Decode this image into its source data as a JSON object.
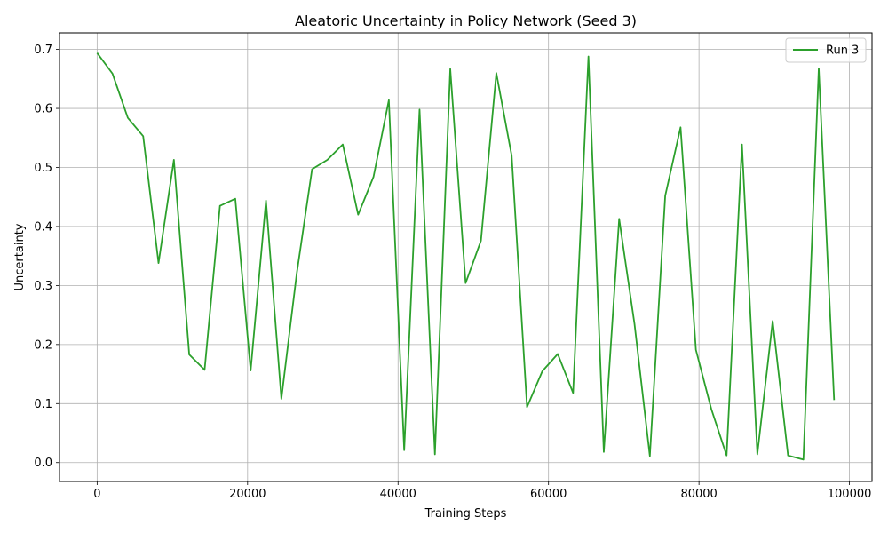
{
  "chart_data": {
    "type": "line",
    "title": "Aleatoric Uncertainty in Policy Network (Seed 3)",
    "xlabel": "Training Steps",
    "ylabel": "Uncertainty",
    "xlim": [
      -5000,
      103000
    ],
    "ylim": [
      -0.032,
      0.728
    ],
    "xticks": [
      0,
      20000,
      40000,
      60000,
      80000,
      100000
    ],
    "xtick_labels": [
      "0",
      "20000",
      "40000",
      "60000",
      "80000",
      "100000"
    ],
    "yticks": [
      0.0,
      0.1,
      0.2,
      0.3,
      0.4,
      0.5,
      0.6,
      0.7
    ],
    "ytick_labels": [
      "0.0",
      "0.1",
      "0.2",
      "0.3",
      "0.4",
      "0.5",
      "0.6",
      "0.7"
    ],
    "grid": true,
    "legend_position": "top-right",
    "series": [
      {
        "name": "Run 3",
        "color": "#2ca02c",
        "x": [
          0,
          2041,
          4082,
          6122,
          8163,
          10204,
          12245,
          14286,
          16327,
          18367,
          20408,
          22449,
          24490,
          26531,
          28571,
          30612,
          32653,
          34694,
          36735,
          38776,
          40816,
          42857,
          44898,
          46939,
          48980,
          51020,
          53061,
          55102,
          57143,
          59184,
          61224,
          63265,
          65306,
          67347,
          69388,
          71429,
          73469,
          75510,
          77551,
          79592,
          81633,
          83673,
          85714,
          87755,
          89796,
          91837,
          93878,
          95918,
          97959
        ],
        "y": [
          0.694,
          0.659,
          0.584,
          0.553,
          0.338,
          0.513,
          0.183,
          0.157,
          0.435,
          0.447,
          0.156,
          0.444,
          0.108,
          0.32,
          0.497,
          0.513,
          0.539,
          0.42,
          0.484,
          0.614,
          0.021,
          0.598,
          0.014,
          0.667,
          0.304,
          0.376,
          0.66,
          0.52,
          0.094,
          0.155,
          0.184,
          0.118,
          0.688,
          0.018,
          0.413,
          0.235,
          0.011,
          0.452,
          0.568,
          0.191,
          0.091,
          0.012,
          0.539,
          0.014,
          0.24,
          0.012,
          0.005,
          0.668,
          0.106
        ]
      }
    ]
  }
}
